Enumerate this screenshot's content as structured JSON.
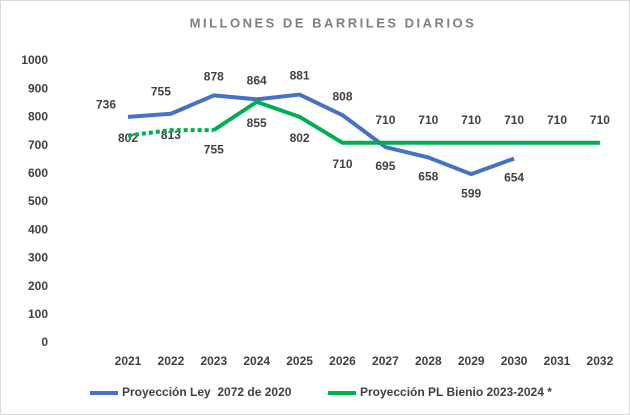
{
  "chart_data": {
    "type": "line",
    "title": "MILLONES DE BARRILES DIARIOS",
    "categories": [
      "2021",
      "2022",
      "2023",
      "2024",
      "2025",
      "2026",
      "2027",
      "2028",
      "2029",
      "2030",
      "2031",
      "2032"
    ],
    "series": [
      {
        "name": "Proyección Ley  2072 de 2020",
        "color": "#4472c4",
        "values": [
          802,
          813,
          878,
          864,
          881,
          808,
          695,
          658,
          599,
          654,
          null,
          null
        ]
      },
      {
        "name": "Proyección PL Bienio 2023-2024 *",
        "color": "#00b050",
        "values": [
          736,
          755,
          755,
          855,
          802,
          710,
          710,
          710,
          710,
          710,
          710,
          710
        ]
      }
    ],
    "ylim": [
      0,
      1000
    ],
    "yticks": [
      0,
      100,
      200,
      300,
      400,
      500,
      600,
      700,
      800,
      900,
      1000
    ],
    "grid": false,
    "legend": "bottom"
  }
}
